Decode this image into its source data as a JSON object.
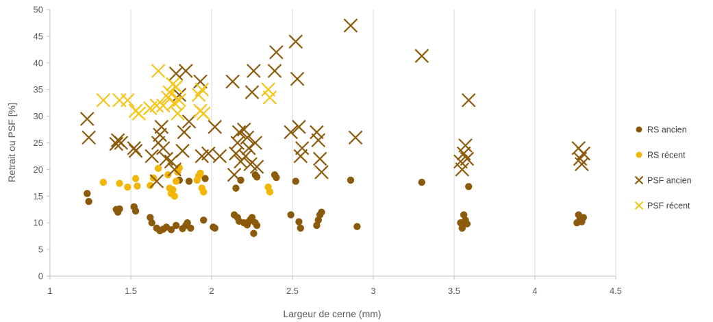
{
  "chart_data": {
    "type": "scatter",
    "xlabel": "Largeur de cerne (mm)",
    "ylabel": "Retrait ou PSF [%]",
    "xlim": [
      1,
      4.5
    ],
    "ylim": [
      0,
      50
    ],
    "xticks": [
      1,
      1.5,
      2,
      2.5,
      3,
      3.5,
      4,
      4.5
    ],
    "xtick_labels": [
      "1",
      "1.5",
      "2",
      "2.5",
      "3",
      "3.5",
      "4",
      "4.5"
    ],
    "yticks": [
      0,
      5,
      10,
      15,
      20,
      25,
      30,
      35,
      40,
      45,
      50
    ],
    "ytick_labels": [
      "0",
      "5",
      "10",
      "15",
      "20",
      "25",
      "30",
      "35",
      "40",
      "45",
      "50"
    ],
    "grid": "vertical",
    "legend_position": "right",
    "series": [
      {
        "name": "RS ancien",
        "marker": "circle",
        "color": "#8B5A0B",
        "points": [
          [
            1.23,
            15.5
          ],
          [
            1.24,
            14.0
          ],
          [
            1.41,
            12.5
          ],
          [
            1.42,
            12.0
          ],
          [
            1.43,
            12.6
          ],
          [
            1.52,
            13.0
          ],
          [
            1.53,
            12.2
          ],
          [
            1.62,
            11.0
          ],
          [
            1.63,
            10.0
          ],
          [
            1.66,
            9.0
          ],
          [
            1.68,
            8.5
          ],
          [
            1.7,
            8.8
          ],
          [
            1.72,
            9.2
          ],
          [
            1.75,
            8.7
          ],
          [
            1.78,
            9.5
          ],
          [
            1.8,
            18.0
          ],
          [
            1.82,
            8.9
          ],
          [
            1.84,
            9.5
          ],
          [
            1.85,
            10.0
          ],
          [
            1.86,
            17.8
          ],
          [
            1.87,
            9.0
          ],
          [
            1.95,
            10.5
          ],
          [
            1.96,
            18.3
          ],
          [
            2.01,
            9.2
          ],
          [
            2.02,
            9.0
          ],
          [
            2.14,
            11.5
          ],
          [
            2.15,
            16.5
          ],
          [
            2.16,
            11.0
          ],
          [
            2.17,
            10.3
          ],
          [
            2.18,
            18.0
          ],
          [
            2.2,
            10.0
          ],
          [
            2.22,
            9.6
          ],
          [
            2.23,
            10.2
          ],
          [
            2.24,
            10.6
          ],
          [
            2.25,
            11.0
          ],
          [
            2.26,
            8.0
          ],
          [
            2.27,
            10.0
          ],
          [
            2.28,
            9.5
          ],
          [
            2.27,
            19.0
          ],
          [
            2.28,
            18.6
          ],
          [
            2.39,
            19.0
          ],
          [
            2.4,
            18.5
          ],
          [
            2.49,
            11.5
          ],
          [
            2.52,
            17.8
          ],
          [
            2.54,
            10.2
          ],
          [
            2.55,
            9.0
          ],
          [
            2.65,
            9.5
          ],
          [
            2.66,
            10.5
          ],
          [
            2.67,
            11.5
          ],
          [
            2.68,
            12.0
          ],
          [
            2.86,
            18.0
          ],
          [
            2.9,
            9.3
          ],
          [
            3.3,
            17.6
          ],
          [
            3.54,
            10.0
          ],
          [
            3.55,
            9.0
          ],
          [
            3.56,
            11.5
          ],
          [
            3.57,
            10.5
          ],
          [
            3.58,
            9.8
          ],
          [
            3.59,
            16.8
          ],
          [
            4.26,
            10.0
          ],
          [
            4.27,
            11.5
          ],
          [
            4.28,
            10.8
          ],
          [
            4.29,
            10.2
          ],
          [
            4.3,
            11.0
          ]
        ]
      },
      {
        "name": "RS récent",
        "marker": "circle",
        "color": "#F2B705",
        "points": [
          [
            1.33,
            17.6
          ],
          [
            1.43,
            17.4
          ],
          [
            1.48,
            16.7
          ],
          [
            1.53,
            18.3
          ],
          [
            1.54,
            16.9
          ],
          [
            1.62,
            17.0
          ],
          [
            1.64,
            18.4
          ],
          [
            1.67,
            20.2
          ],
          [
            1.73,
            19.0
          ],
          [
            1.74,
            16.5
          ],
          [
            1.75,
            15.5
          ],
          [
            1.76,
            16.2
          ],
          [
            1.77,
            15.0
          ],
          [
            1.78,
            17.8
          ],
          [
            1.79,
            19.5
          ],
          [
            1.8,
            20.3
          ],
          [
            1.91,
            18.0
          ],
          [
            1.92,
            18.8
          ],
          [
            1.93,
            19.3
          ],
          [
            1.94,
            16.5
          ],
          [
            1.95,
            15.8
          ],
          [
            2.35,
            16.7
          ],
          [
            2.36,
            15.8
          ]
        ]
      },
      {
        "name": "PSF ancien",
        "marker": "x",
        "color": "#8B5A0B",
        "points": [
          [
            1.23,
            29.5
          ],
          [
            1.24,
            26.0
          ],
          [
            1.41,
            24.8
          ],
          [
            1.42,
            25.5
          ],
          [
            1.44,
            25.0
          ],
          [
            1.52,
            24.0
          ],
          [
            1.53,
            23.5
          ],
          [
            1.63,
            22.5
          ],
          [
            1.66,
            17.8
          ],
          [
            1.67,
            25.0
          ],
          [
            1.68,
            26.5
          ],
          [
            1.69,
            28.0
          ],
          [
            1.7,
            24.0
          ],
          [
            1.72,
            22.0
          ],
          [
            1.75,
            21.5
          ],
          [
            1.77,
            20.0
          ],
          [
            1.78,
            38.0
          ],
          [
            1.8,
            34.0
          ],
          [
            1.82,
            23.5
          ],
          [
            1.83,
            27.0
          ],
          [
            1.84,
            38.5
          ],
          [
            1.86,
            29.0
          ],
          [
            1.93,
            36.5
          ],
          [
            1.94,
            22.5
          ],
          [
            1.98,
            23.0
          ],
          [
            2.02,
            28.0
          ],
          [
            2.05,
            22.5
          ],
          [
            2.13,
            36.5
          ],
          [
            2.14,
            19.0
          ],
          [
            2.15,
            23.0
          ],
          [
            2.16,
            25.0
          ],
          [
            2.17,
            27.0
          ],
          [
            2.18,
            21.5
          ],
          [
            2.2,
            27.5
          ],
          [
            2.21,
            22.5
          ],
          [
            2.22,
            26.0
          ],
          [
            2.23,
            24.0
          ],
          [
            2.24,
            21.0
          ],
          [
            2.25,
            34.5
          ],
          [
            2.26,
            38.5
          ],
          [
            2.27,
            25.0
          ],
          [
            2.28,
            20.5
          ],
          [
            2.39,
            38.5
          ],
          [
            2.4,
            42.0
          ],
          [
            2.49,
            27.0
          ],
          [
            2.52,
            44.0
          ],
          [
            2.53,
            37.0
          ],
          [
            2.54,
            28.0
          ],
          [
            2.55,
            22.5
          ],
          [
            2.56,
            24.0
          ],
          [
            2.65,
            27.0
          ],
          [
            2.66,
            25.5
          ],
          [
            2.67,
            22.0
          ],
          [
            2.68,
            19.5
          ],
          [
            2.86,
            47.0
          ],
          [
            2.89,
            26.0
          ],
          [
            3.3,
            41.3
          ],
          [
            3.54,
            21.5
          ],
          [
            3.55,
            20.0
          ],
          [
            3.56,
            23.0
          ],
          [
            3.57,
            24.5
          ],
          [
            3.58,
            22.0
          ],
          [
            3.59,
            33.0
          ],
          [
            4.27,
            24.0
          ],
          [
            4.28,
            22.0
          ],
          [
            4.29,
            21.0
          ],
          [
            4.3,
            23.0
          ]
        ]
      },
      {
        "name": "PSF récent",
        "marker": "x",
        "color": "#F5C518",
        "points": [
          [
            1.33,
            33.0
          ],
          [
            1.43,
            33.0
          ],
          [
            1.48,
            33.0
          ],
          [
            1.53,
            31.0
          ],
          [
            1.55,
            30.5
          ],
          [
            1.62,
            31.5
          ],
          [
            1.66,
            32.0
          ],
          [
            1.67,
            38.5
          ],
          [
            1.7,
            32.0
          ],
          [
            1.73,
            33.5
          ],
          [
            1.74,
            34.5
          ],
          [
            1.76,
            36.0
          ],
          [
            1.77,
            32.5
          ],
          [
            1.78,
            35.5
          ],
          [
            1.79,
            30.5
          ],
          [
            1.8,
            33.0
          ],
          [
            1.92,
            34.0
          ],
          [
            1.93,
            31.0
          ],
          [
            1.94,
            35.0
          ],
          [
            1.95,
            30.5
          ],
          [
            2.35,
            35.0
          ],
          [
            2.36,
            33.5
          ]
        ]
      }
    ]
  }
}
